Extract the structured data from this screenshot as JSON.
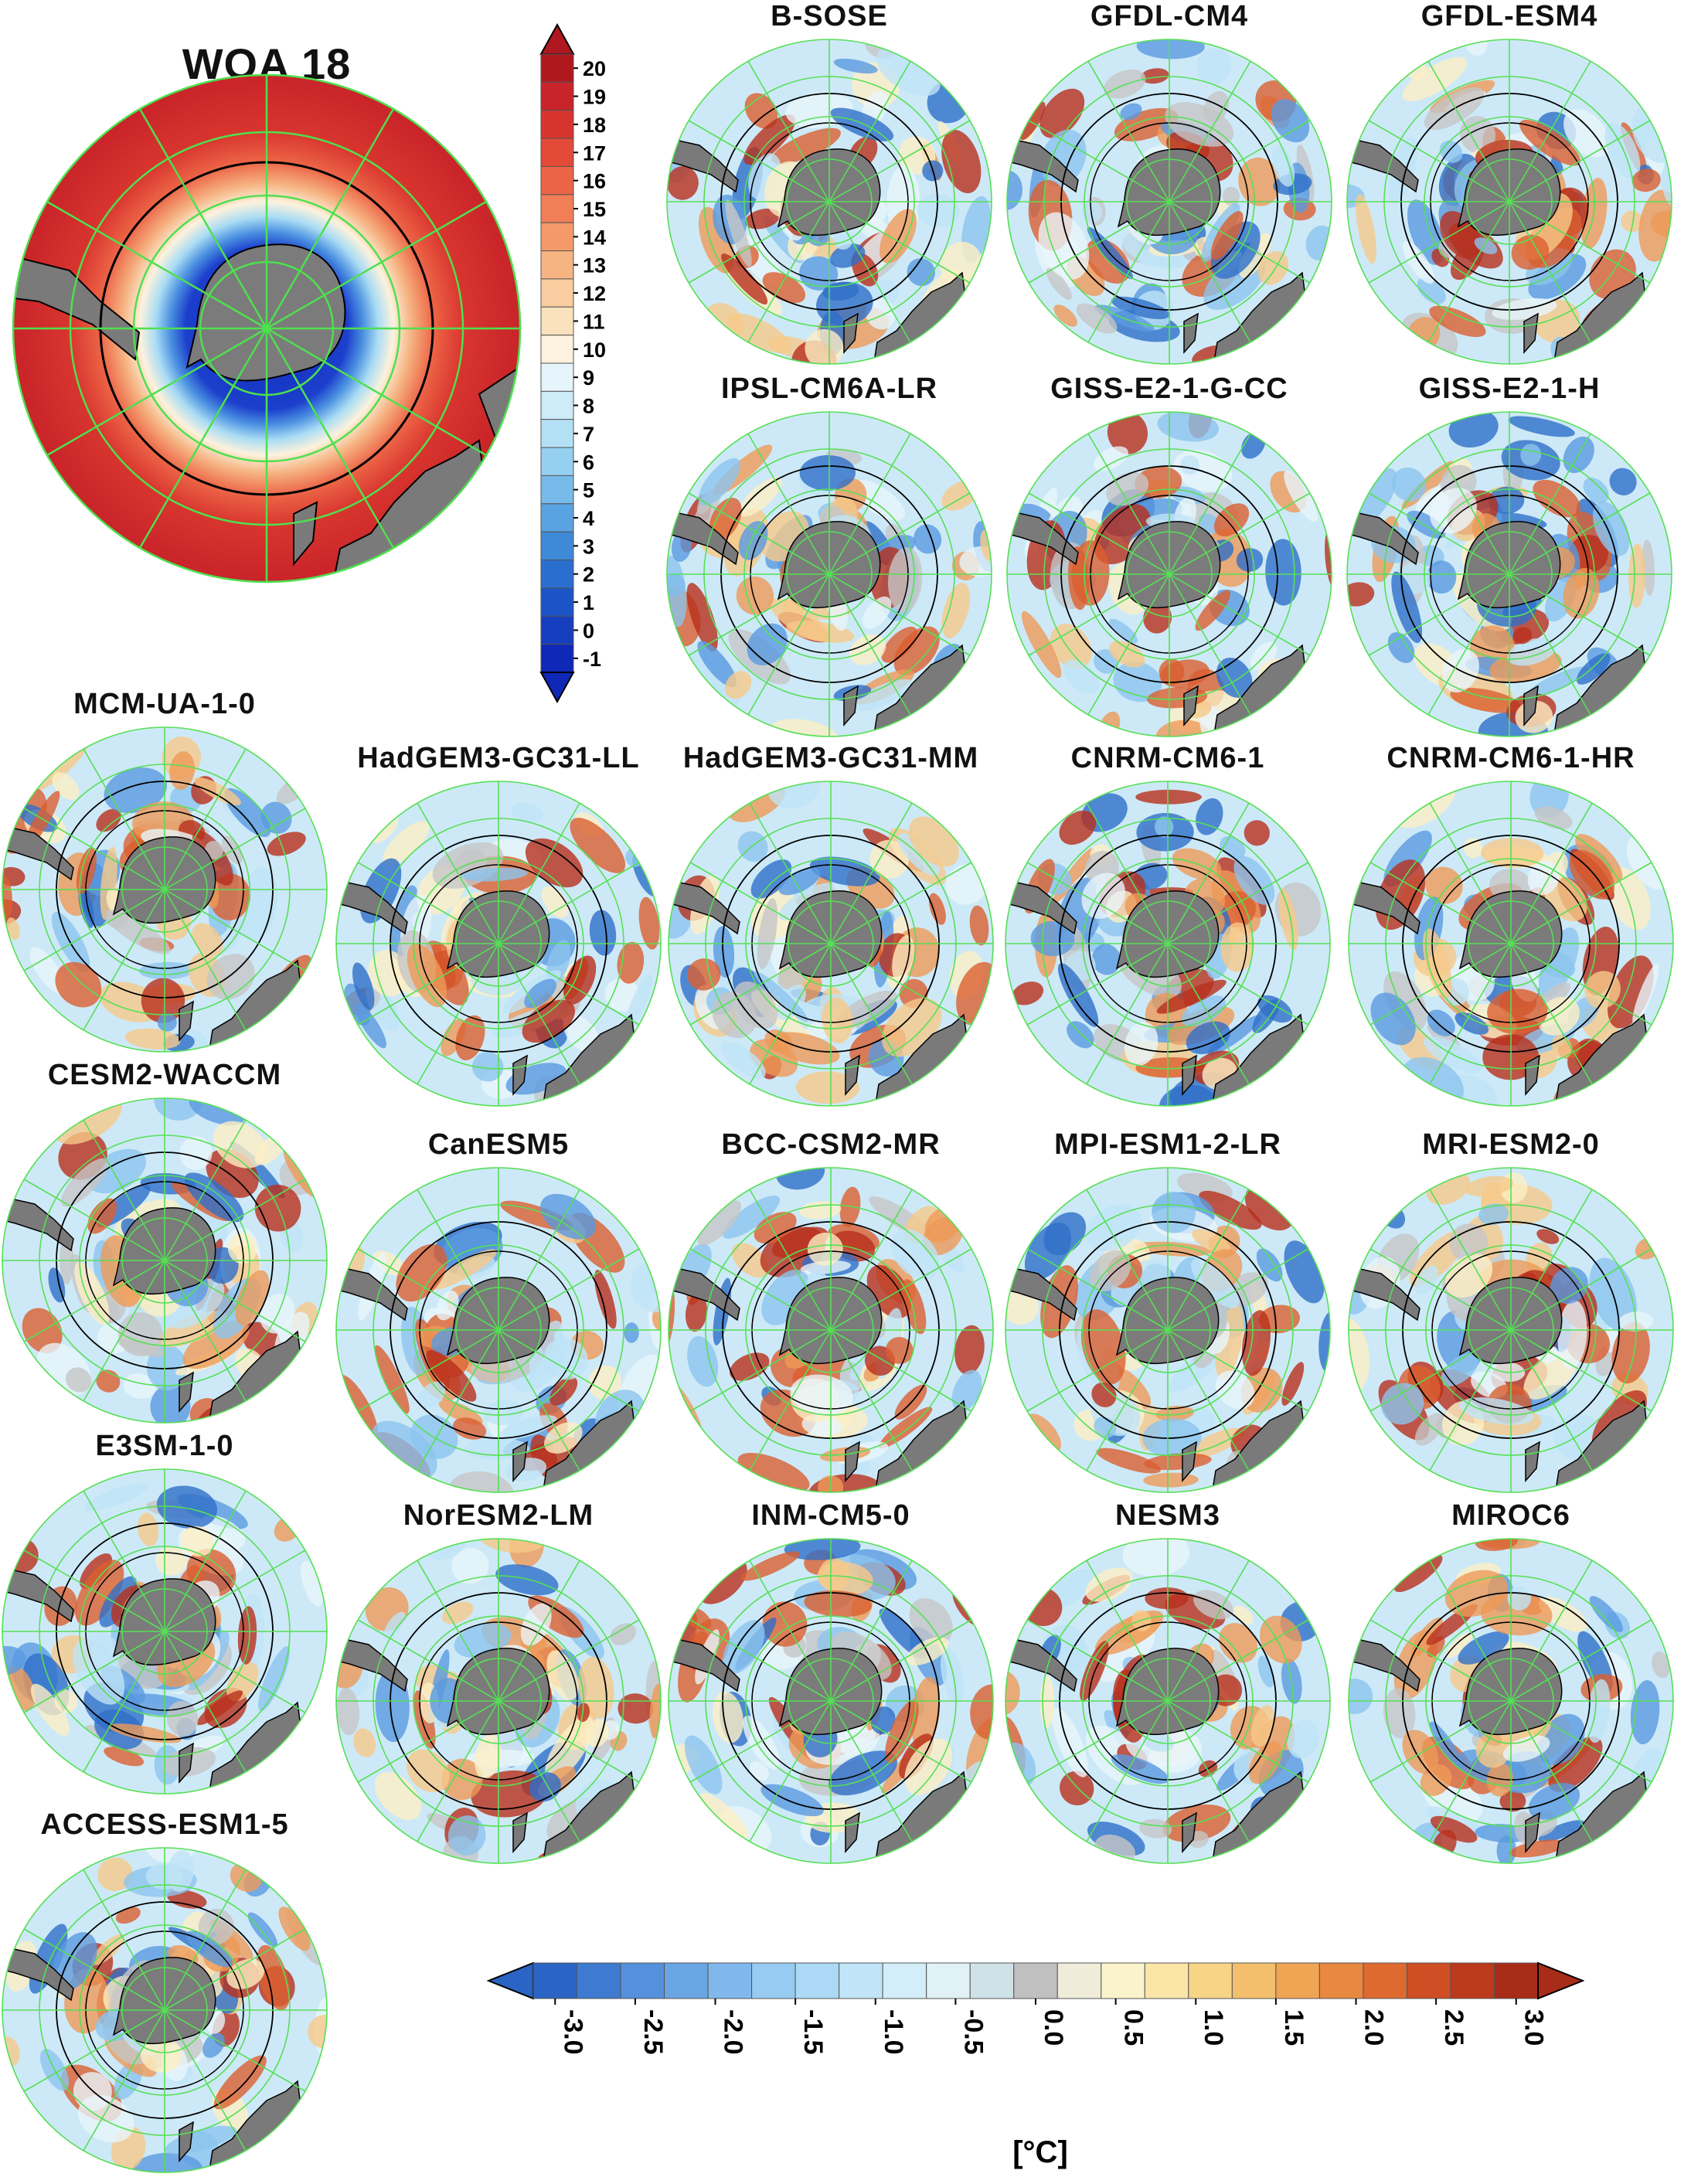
{
  "main_panel": {
    "title": "WOA 18"
  },
  "panels": [
    "B-SOSE",
    "GFDL-CM4",
    "GFDL-ESM4",
    "IPSL-CM6A-LR",
    "GISS-E2-1-G-CC",
    "GISS-E2-1-H",
    "MCM-UA-1-0",
    "HadGEM3-GC31-LL",
    "HadGEM3-GC31-MM",
    "CNRM-CM6-1",
    "CNRM-CM6-1-HR",
    "CESM2-WACCM",
    "CanESM5",
    "BCC-CSM2-MR",
    "MPI-ESM1-2-LR",
    "MRI-ESM2-0",
    "E3SM-1-0",
    "NorESM2-LM",
    "INM-CM5-0",
    "NESM3",
    "MIROC6",
    "ACCESS-ESM1-5"
  ],
  "colorbar_absolute": {
    "ticks": [
      "20",
      "19",
      "18",
      "17",
      "16",
      "15",
      "14",
      "13",
      "12",
      "11",
      "10",
      "9",
      "8",
      "7",
      "6",
      "5",
      "4",
      "3",
      "2",
      "1",
      "0",
      "-1"
    ],
    "colors": [
      "#b01820",
      "#c8242a",
      "#d8342e",
      "#e44a38",
      "#ec6446",
      "#f07e56",
      "#f49a6a",
      "#f6b483",
      "#f9cd9f",
      "#fbe2bf",
      "#fcf2dd",
      "#e6f4fb",
      "#cdebf8",
      "#b4e0f5",
      "#96d0f0",
      "#77bbea",
      "#5aa3e2",
      "#3e89d8",
      "#2a6ed0",
      "#1c54c8",
      "#163fc0",
      "#0f28b8"
    ]
  },
  "colorbar_anomaly": {
    "ticks": [
      "-3.0",
      "-2.5",
      "-2.0",
      "-1.5",
      "-1.0",
      "-0.5",
      "0.0",
      "0.5",
      "1.0",
      "1.5",
      "2.0",
      "2.5",
      "3.0"
    ],
    "unit": "[°C]",
    "colors": [
      "#2a64c4",
      "#3d7ad0",
      "#5590dc",
      "#6aa5e4",
      "#80b8ec",
      "#98cbf2",
      "#acd9f6",
      "#c0e5f8",
      "#d3eef8",
      "#e0f2f6",
      "#cfe2e8",
      "#c0c0c0",
      "#efecda",
      "#fbf3cc",
      "#fbe6a8",
      "#f8d487",
      "#f4bf6c",
      "#efa554",
      "#e98840",
      "#df6a30",
      "#cf4e24",
      "#bc3a1c",
      "#a82c18"
    ]
  }
}
